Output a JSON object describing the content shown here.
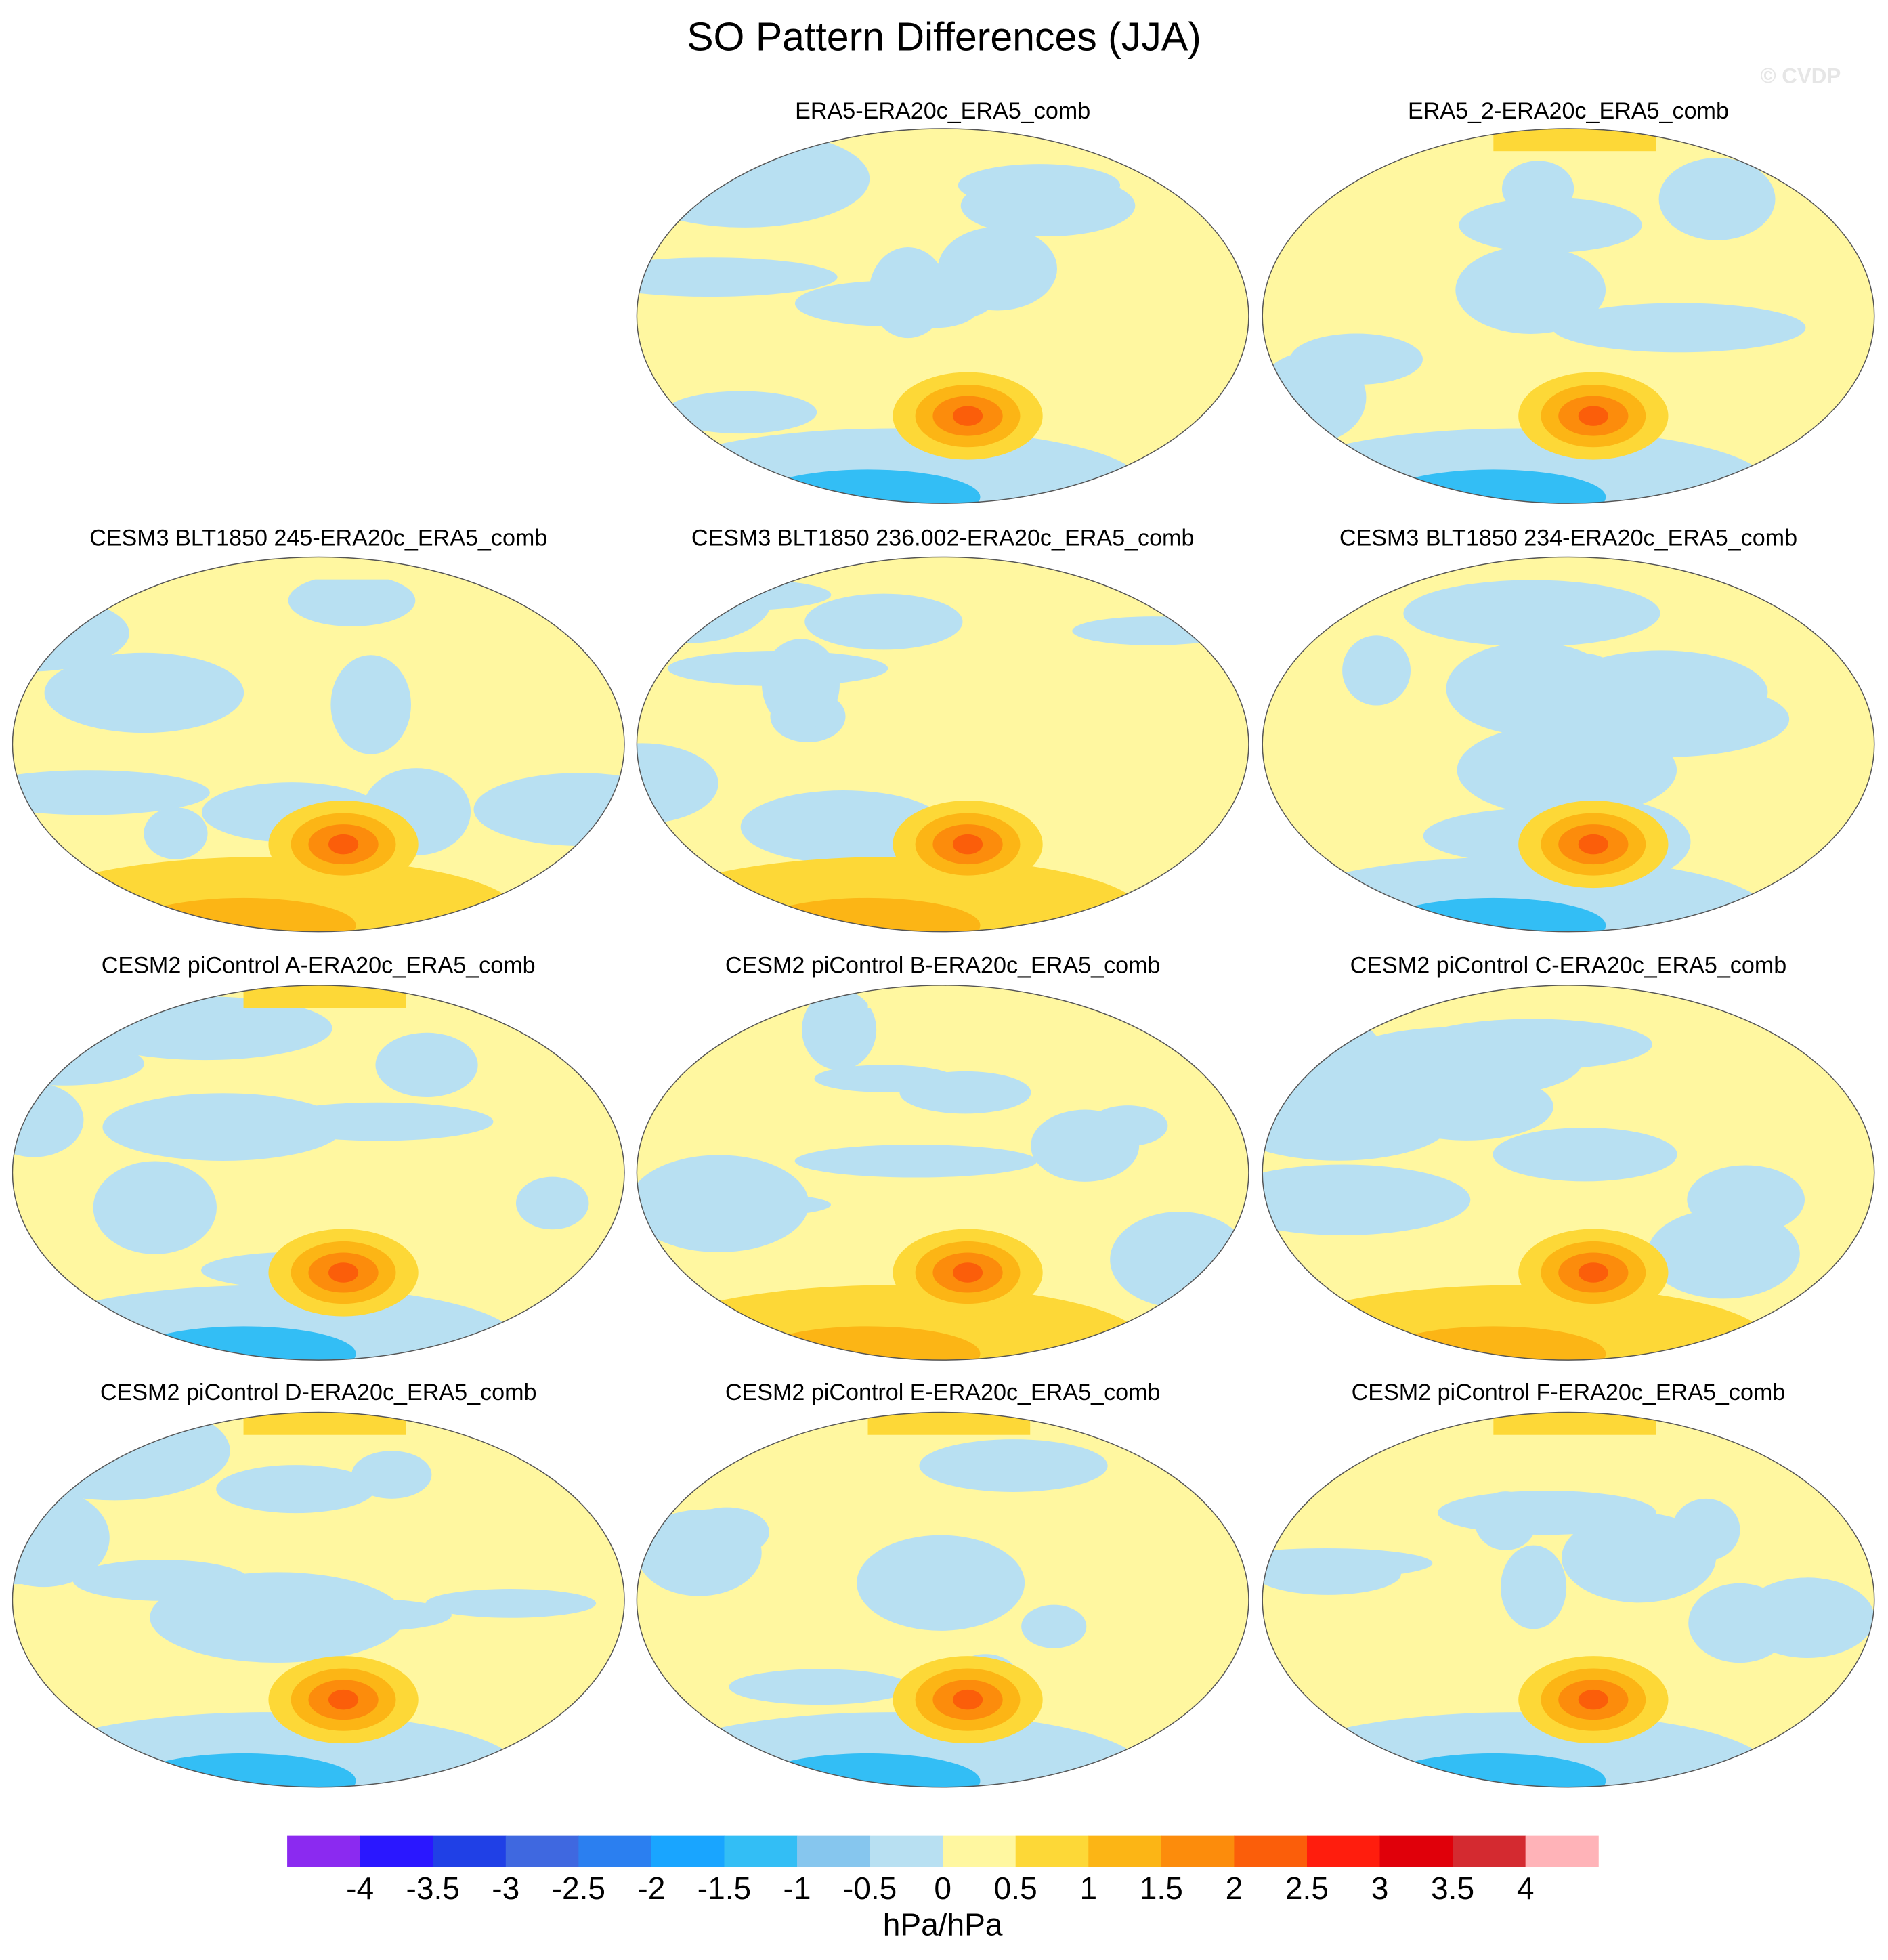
{
  "chart_data": {
    "type": "map",
    "title": "SO Pattern Differences (JJA)",
    "watermark": "© CVDP",
    "panels": [
      {
        "title": "ERA5-ERA20c_ERA5_comb"
      },
      {
        "title": "ERA5_2-ERA20c_ERA5_comb"
      },
      {
        "title": "CESM3 BLT1850 245-ERA20c_ERA5_comb"
      },
      {
        "title": "CESM3 BLT1850 236.002-ERA20c_ERA5_comb"
      },
      {
        "title": "CESM3 BLT1850 234-ERA20c_ERA5_comb"
      },
      {
        "title": "CESM2 piControl A-ERA20c_ERA5_comb"
      },
      {
        "title": "CESM2 piControl B-ERA20c_ERA5_comb"
      },
      {
        "title": "CESM2 piControl C-ERA20c_ERA5_comb"
      },
      {
        "title": "CESM2 piControl D-ERA20c_ERA5_comb"
      },
      {
        "title": "CESM2 piControl E-ERA20c_ERA5_comb"
      },
      {
        "title": "CESM2 piControl F-ERA20c_ERA5_comb"
      }
    ],
    "colorbar": {
      "colors": [
        "#8b2af0",
        "#2a17ff",
        "#2040e6",
        "#3f68e0",
        "#2b7ff0",
        "#19a5ff",
        "#33bef5",
        "#86c6ee",
        "#b8e0f2",
        "#fff7a0",
        "#fdd837",
        "#fcb515",
        "#fc8c0c",
        "#fb5e0a",
        "#ff1d0d",
        "#e0000a",
        "#d42a30",
        "#ffb3b8"
      ],
      "ticks": [
        -4,
        -3.5,
        -3,
        -2.5,
        -2,
        -1.5,
        -1,
        -0.5,
        0,
        0.5,
        1,
        1.5,
        2,
        2.5,
        3,
        3.5,
        4
      ],
      "label": "hPa/hPa"
    }
  }
}
